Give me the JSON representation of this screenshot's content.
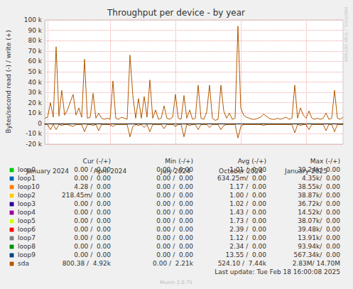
{
  "chart_data": {
    "type": "line",
    "title": "Throughput per device - by year",
    "y_label": "Bytes/second read (-) / write (+)",
    "categories": [
      null,
      "January 2024",
      null,
      null,
      null,
      null,
      null,
      null,
      null,
      null,
      null,
      null,
      null,
      null,
      null,
      null,
      null,
      null,
      null,
      null,
      null,
      null,
      null,
      "April 2024",
      null,
      null,
      null,
      null,
      null,
      null,
      null,
      null,
      null,
      null,
      null,
      null,
      null,
      null,
      null,
      null,
      null,
      null,
      null,
      null,
      null,
      null,
      "July 2024",
      null,
      null,
      null,
      null,
      null,
      null,
      null,
      null,
      null,
      null,
      null,
      null,
      null,
      null,
      null,
      null,
      null,
      null,
      null,
      null,
      null,
      null,
      "October 2024",
      null,
      null,
      null,
      null,
      null,
      null,
      null,
      null,
      null,
      null,
      null,
      null,
      null,
      null,
      null,
      null,
      null,
      null,
      null,
      null,
      null,
      null,
      "January 2025",
      null,
      null,
      null,
      null,
      null,
      null,
      null,
      null,
      null,
      null,
      null,
      null,
      null
    ],
    "series": [
      {
        "name": "sda",
        "color": "#b35a00",
        "values": [
          5000,
          6000,
          20000,
          6000,
          74000,
          7000,
          32000,
          8000,
          13000,
          21000,
          28000,
          8000,
          15000,
          6000,
          62000,
          5000,
          6000,
          29000,
          5000,
          10000,
          5000,
          4000,
          5000,
          4000,
          41000,
          5000,
          4000,
          6000,
          5000,
          4000,
          66000,
          27000,
          5000,
          24000,
          5000,
          26000,
          6000,
          42000,
          5000,
          13000,
          4000,
          5000,
          17000,
          5000,
          4000,
          6000,
          28000,
          5000,
          4000,
          27000,
          5000,
          13000,
          4000,
          5000,
          37000,
          5000,
          4000,
          11000,
          37000,
          5000,
          3000,
          4000,
          37000,
          12000,
          5000,
          10000,
          4000,
          5000,
          94000,
          15000,
          8000,
          6000,
          5000,
          4000,
          4000,
          5000,
          6000,
          9000,
          7000,
          5000,
          4000,
          4000,
          5000,
          4000,
          5000,
          6000,
          4000,
          5000,
          37000,
          5000,
          15000,
          8000,
          5000,
          12000,
          5000,
          4000,
          5000,
          4000,
          5000,
          10000,
          4000,
          5000,
          32000,
          5000,
          4000,
          6000
        ]
      },
      {
        "name": "sda",
        "color": "#b35a00",
        "values": [
          -1000,
          -1000,
          -6000,
          -1000,
          -6000,
          -1000,
          -2000,
          -1000,
          -1000,
          -2000,
          -3000,
          -1000,
          -1000,
          -1000,
          -8000,
          -1000,
          -1000,
          -2000,
          -1000,
          -7000,
          -1000,
          -1000,
          -1000,
          -1000,
          -3000,
          -1000,
          -1000,
          -1000,
          -1000,
          -1000,
          -13000,
          -3000,
          -1000,
          -2000,
          -1000,
          -4000,
          -1000,
          -8000,
          -1000,
          -1000,
          -1000,
          -1000,
          -5000,
          -1000,
          -1000,
          -1000,
          -3000,
          -1000,
          -1000,
          -13000,
          -1000,
          -2000,
          -1000,
          -1000,
          -6000,
          -1000,
          -1000,
          -1000,
          -4000,
          -1000,
          -1000,
          -1000,
          -6000,
          -2000,
          -1000,
          -1000,
          -1000,
          -1000,
          -14000,
          -3000,
          -1000,
          -1000,
          -1000,
          -1000,
          -1000,
          -1000,
          -1000,
          -2000,
          -1000,
          -1000,
          -1000,
          -1000,
          -1000,
          -1000,
          -1000,
          -1000,
          -1000,
          -1000,
          -9000,
          -1000,
          -2000,
          -1000,
          -1000,
          -6000,
          -1000,
          -1000,
          -1000,
          -1000,
          -1000,
          -7000,
          -1000,
          -1000,
          -8000,
          -1000,
          -1000,
          -1000
        ]
      }
    ],
    "ylim": [
      -20000,
      100000
    ],
    "yticks": [
      {
        "value": -20000,
        "label": "-20 k"
      },
      {
        "value": -10000,
        "label": "-10 k"
      },
      0,
      {
        "value": 10000,
        "label": "10 k"
      },
      {
        "value": 20000,
        "label": "20 k"
      },
      {
        "value": 30000,
        "label": "30 k"
      },
      {
        "value": 40000,
        "label": "40 k"
      },
      {
        "value": 50000,
        "label": "50 k"
      },
      {
        "value": 60000,
        "label": "60 k"
      },
      {
        "value": 70000,
        "label": "70 k"
      },
      {
        "value": 80000,
        "label": "80 k"
      },
      {
        "value": 90000,
        "label": "90 k"
      },
      {
        "value": 100000,
        "label": "100 k"
      }
    ],
    "grid": true,
    "table": {
      "header": [
        "Cur (-/+)",
        "Min (-/+)",
        "Avg (-/+)",
        "Max (-/+)"
      ],
      "rows": [
        {
          "name": "loop0",
          "color": "#00cc00",
          "cells": [
            "0.00 /  0.00",
            "0.00 /  0.00",
            "1.01 /  0.00",
            "39.24k/  0.00"
          ]
        },
        {
          "name": "loop1",
          "color": "#0066b3",
          "cells": [
            "0.00 /  0.00",
            "0.00 /  0.00",
            "634.25m/  0.00",
            "4.35k/  0.00"
          ]
        },
        {
          "name": "loop10",
          "color": "#ff8000",
          "cells": [
            "4.28 /  0.00",
            "0.00 /  0.00",
            "1.17 /  0.00",
            "38.55k/  0.00"
          ]
        },
        {
          "name": "loop2",
          "color": "#ffcc00",
          "cells": [
            "218.45m/  0.00",
            "0.00 /  0.00",
            "1.00 /  0.00",
            "38.87k/  0.00"
          ]
        },
        {
          "name": "loop3",
          "color": "#330099",
          "cells": [
            "0.00 /  0.00",
            "0.00 /  0.00",
            "1.02 /  0.00",
            "36.72k/  0.00"
          ]
        },
        {
          "name": "loop4",
          "color": "#990099",
          "cells": [
            "0.00 /  0.00",
            "0.00 /  0.00",
            "1.43 /  0.00",
            "14.52k/  0.00"
          ]
        },
        {
          "name": "loop5",
          "color": "#ccff00",
          "cells": [
            "0.00 /  0.00",
            "0.00 /  0.00",
            "1.73 /  0.00",
            "38.07k/  0.00"
          ]
        },
        {
          "name": "loop6",
          "color": "#ff0000",
          "cells": [
            "0.00 /  0.00",
            "0.00 /  0.00",
            "2.39 /  0.00",
            "39.48k/  0.00"
          ]
        },
        {
          "name": "loop7",
          "color": "#808080",
          "cells": [
            "0.00 /  0.00",
            "0.00 /  0.00",
            "1.12 /  0.00",
            "13.91k/  0.00"
          ]
        },
        {
          "name": "loop8",
          "color": "#008f00",
          "cells": [
            "0.00 /  0.00",
            "0.00 /  0.00",
            "2.34 /  0.00",
            "93.94k/  0.00"
          ]
        },
        {
          "name": "loop9",
          "color": "#00487d",
          "cells": [
            "0.00 /  0.00",
            "0.00 /  0.00",
            "13.55 /  0.00",
            "567.34k/  0.00"
          ]
        },
        {
          "name": "sda",
          "color": "#b35a00",
          "cells": [
            "800.38 /  4.92k",
            "0.00 /  2.21k",
            "524.10 /  7.44k",
            "2.83M/ 14.70M"
          ]
        }
      ]
    },
    "last_update": "Last update: Tue Feb 18 16:00:08 2025",
    "watermark": "RRDTOOL / TOBI OETIKER",
    "footer": "Munin 2.0.75"
  }
}
